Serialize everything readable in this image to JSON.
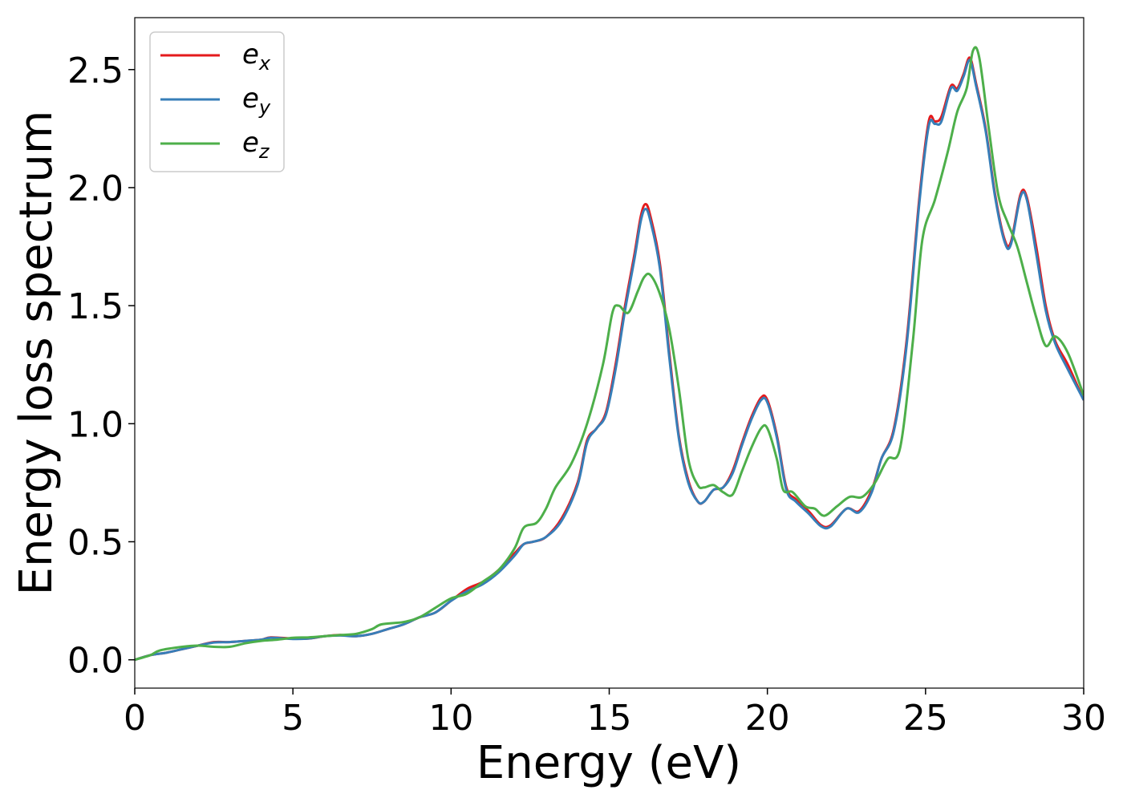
{
  "chart_data": {
    "type": "line",
    "title": "",
    "xlabel": "Energy (eV)",
    "ylabel": "Energy loss spectrum",
    "xlim": [
      0,
      30
    ],
    "ylim": [
      -0.12,
      2.72
    ],
    "xticks": [
      0,
      5,
      10,
      15,
      20,
      25,
      30
    ],
    "xtick_labels": [
      "0",
      "5",
      "10",
      "15",
      "20",
      "25",
      "30"
    ],
    "yticks": [
      0.0,
      0.5,
      1.0,
      1.5,
      2.0,
      2.5
    ],
    "ytick_labels": [
      "0.0",
      "0.5",
      "1.0",
      "1.5",
      "2.0",
      "2.5"
    ],
    "grid": false,
    "legend_position": "top-left",
    "series": [
      {
        "name": "e_x",
        "label_base": "e",
        "label_sub": "x",
        "color": "#e41a1c",
        "points": [
          [
            0,
            0.0
          ],
          [
            0.5,
            0.02
          ],
          [
            1,
            0.03
          ],
          [
            1.5,
            0.045
          ],
          [
            2,
            0.06
          ],
          [
            2.5,
            0.075
          ],
          [
            3,
            0.075
          ],
          [
            3.5,
            0.08
          ],
          [
            4,
            0.085
          ],
          [
            4.3,
            0.095
          ],
          [
            5,
            0.09
          ],
          [
            5.5,
            0.09
          ],
          [
            6,
            0.1
          ],
          [
            6.5,
            0.105
          ],
          [
            7,
            0.1
          ],
          [
            7.5,
            0.11
          ],
          [
            8,
            0.13
          ],
          [
            8.5,
            0.15
          ],
          [
            9,
            0.18
          ],
          [
            9.5,
            0.2
          ],
          [
            10,
            0.25
          ],
          [
            10.5,
            0.3
          ],
          [
            11,
            0.33
          ],
          [
            11.5,
            0.38
          ],
          [
            12,
            0.45
          ],
          [
            12.3,
            0.49
          ],
          [
            12.6,
            0.5
          ],
          [
            13,
            0.52
          ],
          [
            13.5,
            0.6
          ],
          [
            14,
            0.75
          ],
          [
            14.3,
            0.93
          ],
          [
            14.6,
            0.98
          ],
          [
            14.9,
            1.05
          ],
          [
            15.2,
            1.25
          ],
          [
            15.5,
            1.5
          ],
          [
            15.8,
            1.72
          ],
          [
            16,
            1.88
          ],
          [
            16.15,
            1.93
          ],
          [
            16.3,
            1.88
          ],
          [
            16.6,
            1.68
          ],
          [
            16.9,
            1.3
          ],
          [
            17.2,
            0.95
          ],
          [
            17.5,
            0.76
          ],
          [
            17.8,
            0.67
          ],
          [
            18,
            0.67
          ],
          [
            18.3,
            0.72
          ],
          [
            18.6,
            0.73
          ],
          [
            18.9,
            0.8
          ],
          [
            19.2,
            0.92
          ],
          [
            19.5,
            1.03
          ],
          [
            19.8,
            1.11
          ],
          [
            20,
            1.1
          ],
          [
            20.3,
            0.95
          ],
          [
            20.6,
            0.73
          ],
          [
            20.9,
            0.68
          ],
          [
            21.3,
            0.63
          ],
          [
            21.7,
            0.57
          ],
          [
            22,
            0.57
          ],
          [
            22.5,
            0.64
          ],
          [
            22.9,
            0.63
          ],
          [
            23.3,
            0.72
          ],
          [
            23.6,
            0.85
          ],
          [
            24,
            0.98
          ],
          [
            24.4,
            1.35
          ],
          [
            24.8,
            1.95
          ],
          [
            25.1,
            2.28
          ],
          [
            25.3,
            2.28
          ],
          [
            25.5,
            2.3
          ],
          [
            25.8,
            2.43
          ],
          [
            26,
            2.42
          ],
          [
            26.2,
            2.48
          ],
          [
            26.4,
            2.55
          ],
          [
            26.6,
            2.44
          ],
          [
            26.9,
            2.25
          ],
          [
            27.2,
            1.97
          ],
          [
            27.5,
            1.78
          ],
          [
            27.7,
            1.77
          ],
          [
            28,
            1.97
          ],
          [
            28.2,
            1.96
          ],
          [
            28.5,
            1.75
          ],
          [
            28.8,
            1.5
          ],
          [
            29.1,
            1.35
          ],
          [
            29.5,
            1.25
          ],
          [
            30,
            1.1
          ]
        ]
      },
      {
        "name": "e_y",
        "label_base": "e",
        "label_sub": "y",
        "color": "#377eb8",
        "points": [
          [
            0,
            0.0
          ],
          [
            0.5,
            0.02
          ],
          [
            1,
            0.03
          ],
          [
            1.5,
            0.045
          ],
          [
            2,
            0.06
          ],
          [
            2.5,
            0.073
          ],
          [
            3,
            0.075
          ],
          [
            3.5,
            0.08
          ],
          [
            4,
            0.085
          ],
          [
            4.3,
            0.093
          ],
          [
            5,
            0.088
          ],
          [
            5.5,
            0.09
          ],
          [
            6,
            0.1
          ],
          [
            6.5,
            0.103
          ],
          [
            7,
            0.1
          ],
          [
            7.5,
            0.11
          ],
          [
            8,
            0.13
          ],
          [
            8.5,
            0.15
          ],
          [
            9,
            0.18
          ],
          [
            9.5,
            0.2
          ],
          [
            10,
            0.25
          ],
          [
            10.5,
            0.29
          ],
          [
            11,
            0.32
          ],
          [
            11.5,
            0.37
          ],
          [
            12,
            0.44
          ],
          [
            12.3,
            0.49
          ],
          [
            12.6,
            0.5
          ],
          [
            13,
            0.52
          ],
          [
            13.5,
            0.59
          ],
          [
            14,
            0.74
          ],
          [
            14.3,
            0.92
          ],
          [
            14.6,
            0.98
          ],
          [
            14.9,
            1.04
          ],
          [
            15.2,
            1.23
          ],
          [
            15.5,
            1.48
          ],
          [
            15.8,
            1.7
          ],
          [
            16,
            1.86
          ],
          [
            16.15,
            1.91
          ],
          [
            16.3,
            1.86
          ],
          [
            16.6,
            1.66
          ],
          [
            16.9,
            1.28
          ],
          [
            17.2,
            0.94
          ],
          [
            17.5,
            0.75
          ],
          [
            17.8,
            0.67
          ],
          [
            18,
            0.67
          ],
          [
            18.3,
            0.72
          ],
          [
            18.6,
            0.73
          ],
          [
            18.9,
            0.79
          ],
          [
            19.2,
            0.91
          ],
          [
            19.5,
            1.02
          ],
          [
            19.8,
            1.1
          ],
          [
            20,
            1.09
          ],
          [
            20.3,
            0.94
          ],
          [
            20.6,
            0.72
          ],
          [
            20.9,
            0.67
          ],
          [
            21.3,
            0.62
          ],
          [
            21.7,
            0.565
          ],
          [
            22,
            0.565
          ],
          [
            22.5,
            0.64
          ],
          [
            22.9,
            0.625
          ],
          [
            23.3,
            0.71
          ],
          [
            23.6,
            0.85
          ],
          [
            24,
            0.97
          ],
          [
            24.4,
            1.33
          ],
          [
            24.8,
            1.93
          ],
          [
            25.1,
            2.26
          ],
          [
            25.3,
            2.27
          ],
          [
            25.5,
            2.28
          ],
          [
            25.8,
            2.42
          ],
          [
            26,
            2.41
          ],
          [
            26.2,
            2.47
          ],
          [
            26.4,
            2.54
          ],
          [
            26.6,
            2.43
          ],
          [
            26.9,
            2.24
          ],
          [
            27.2,
            1.96
          ],
          [
            27.5,
            1.77
          ],
          [
            27.7,
            1.76
          ],
          [
            28,
            1.96
          ],
          [
            28.2,
            1.95
          ],
          [
            28.5,
            1.72
          ],
          [
            28.8,
            1.48
          ],
          [
            29.1,
            1.34
          ],
          [
            29.5,
            1.23
          ],
          [
            30,
            1.1
          ]
        ]
      },
      {
        "name": "e_z",
        "label_base": "e",
        "label_sub": "z",
        "color": "#4daf4a",
        "points": [
          [
            0,
            0.0
          ],
          [
            0.5,
            0.02
          ],
          [
            0.8,
            0.04
          ],
          [
            1.5,
            0.055
          ],
          [
            2,
            0.06
          ],
          [
            2.5,
            0.055
          ],
          [
            3,
            0.055
          ],
          [
            3.5,
            0.07
          ],
          [
            4,
            0.08
          ],
          [
            4.5,
            0.085
          ],
          [
            5,
            0.093
          ],
          [
            5.5,
            0.095
          ],
          [
            6,
            0.1
          ],
          [
            6.5,
            0.105
          ],
          [
            7,
            0.11
          ],
          [
            7.5,
            0.13
          ],
          [
            7.8,
            0.15
          ],
          [
            8.5,
            0.16
          ],
          [
            9,
            0.18
          ],
          [
            9.5,
            0.22
          ],
          [
            10,
            0.26
          ],
          [
            10.5,
            0.28
          ],
          [
            11,
            0.33
          ],
          [
            11.5,
            0.38
          ],
          [
            12,
            0.47
          ],
          [
            12.3,
            0.56
          ],
          [
            12.7,
            0.58
          ],
          [
            13,
            0.64
          ],
          [
            13.3,
            0.73
          ],
          [
            13.8,
            0.83
          ],
          [
            14.3,
            1.0
          ],
          [
            14.8,
            1.25
          ],
          [
            15.1,
            1.47
          ],
          [
            15.3,
            1.5
          ],
          [
            15.6,
            1.47
          ],
          [
            15.9,
            1.56
          ],
          [
            16.1,
            1.62
          ],
          [
            16.3,
            1.63
          ],
          [
            16.6,
            1.55
          ],
          [
            16.9,
            1.4
          ],
          [
            17.2,
            1.15
          ],
          [
            17.5,
            0.85
          ],
          [
            17.8,
            0.74
          ],
          [
            18,
            0.73
          ],
          [
            18.3,
            0.74
          ],
          [
            18.6,
            0.71
          ],
          [
            18.9,
            0.7
          ],
          [
            19.2,
            0.8
          ],
          [
            19.5,
            0.9
          ],
          [
            19.8,
            0.98
          ],
          [
            20,
            0.98
          ],
          [
            20.3,
            0.85
          ],
          [
            20.5,
            0.72
          ],
          [
            20.8,
            0.71
          ],
          [
            21.2,
            0.65
          ],
          [
            21.5,
            0.64
          ],
          [
            21.8,
            0.61
          ],
          [
            22.2,
            0.65
          ],
          [
            22.6,
            0.69
          ],
          [
            23,
            0.69
          ],
          [
            23.4,
            0.75
          ],
          [
            23.8,
            0.85
          ],
          [
            24.2,
            0.9
          ],
          [
            24.6,
            1.35
          ],
          [
            24.9,
            1.78
          ],
          [
            25.3,
            1.95
          ],
          [
            25.7,
            2.15
          ],
          [
            26.0,
            2.32
          ],
          [
            26.3,
            2.42
          ],
          [
            26.5,
            2.58
          ],
          [
            26.7,
            2.55
          ],
          [
            27.0,
            2.25
          ],
          [
            27.3,
            1.97
          ],
          [
            27.6,
            1.85
          ],
          [
            27.9,
            1.75
          ],
          [
            28.2,
            1.6
          ],
          [
            28.5,
            1.45
          ],
          [
            28.8,
            1.33
          ],
          [
            29.1,
            1.37
          ],
          [
            29.5,
            1.3
          ],
          [
            30,
            1.12
          ]
        ]
      }
    ]
  }
}
